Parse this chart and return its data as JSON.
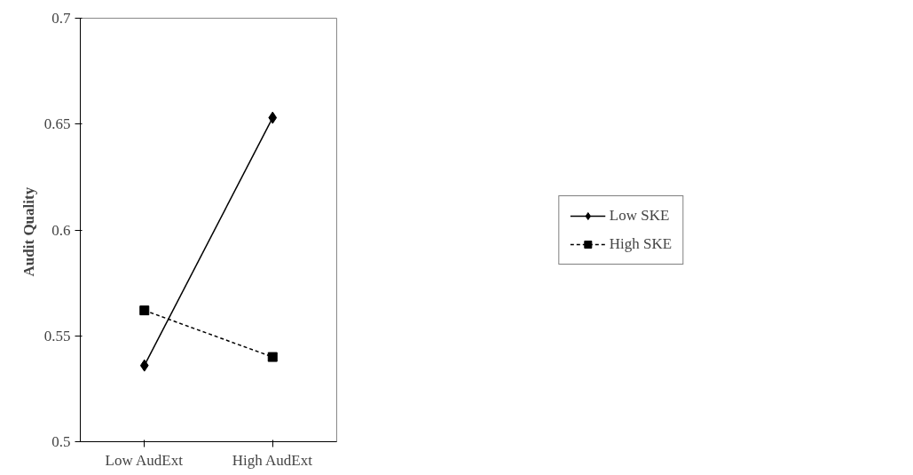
{
  "chart_data": {
    "type": "line",
    "ylabel": "Audit  Quality",
    "categories": [
      "Low AudExt",
      "High AudExt"
    ],
    "series": [
      {
        "name": "Low SKE",
        "color": "#000000",
        "values": [
          0.536,
          0.653
        ],
        "marker": "diamond",
        "line_style": "solid"
      },
      {
        "name": "High SKE",
        "color": "#000000",
        "values": [
          0.562,
          0.54
        ],
        "marker": "square",
        "line_style": "dashed"
      }
    ],
    "ylim": [
      0.5,
      0.7
    ],
    "yticks": [
      0.5,
      0.55,
      0.6,
      0.65,
      0.7
    ],
    "grid": false,
    "legend": "right"
  }
}
